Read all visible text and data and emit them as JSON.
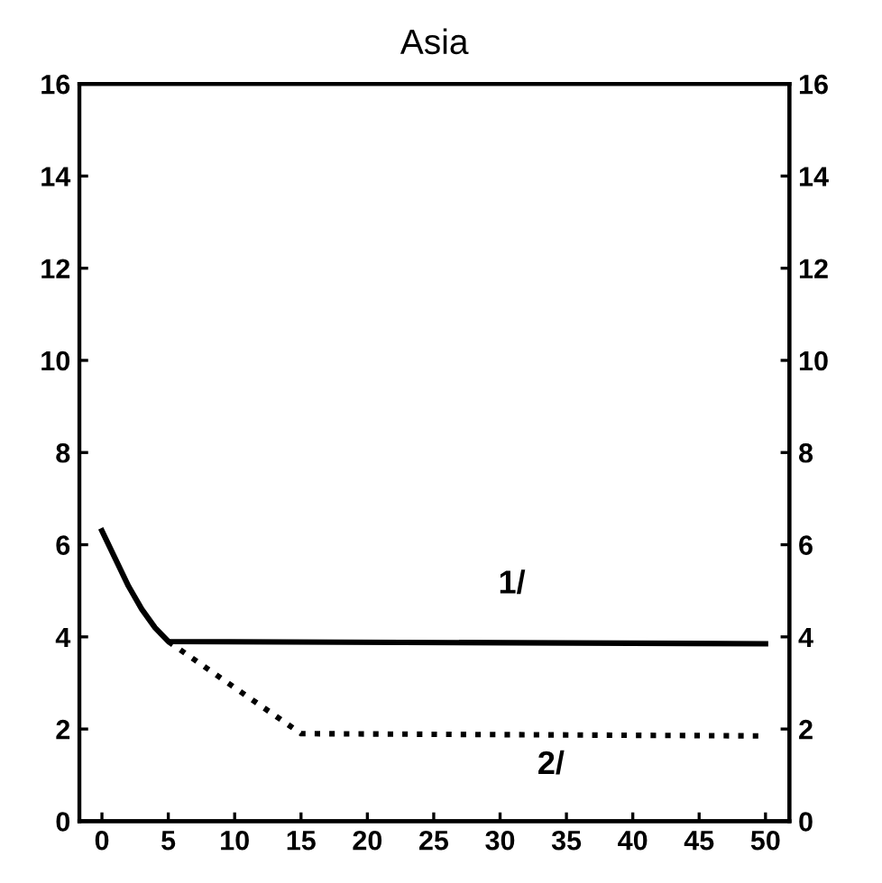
{
  "chart_data": {
    "type": "line",
    "title": "Asia",
    "series": [
      {
        "color": "#000000",
        "line_style": "solid",
        "x": [
          0,
          1,
          2,
          3,
          4,
          5,
          50
        ],
        "values": [
          6.3,
          5.7,
          5.1,
          4.6,
          4.2,
          3.9,
          3.85
        ]
      },
      {
        "color": "#000000",
        "line_style": "dotted",
        "x": [
          5,
          15,
          50
        ],
        "values": [
          3.9,
          1.9,
          1.85
        ]
      }
    ],
    "annotations": [
      "1/",
      "2/"
    ],
    "xlim": [
      -1.7,
      51.8
    ],
    "xticks": [
      0,
      5,
      10,
      15,
      20,
      25,
      30,
      35,
      40,
      45,
      50
    ],
    "ylim": [
      0,
      16
    ],
    "yticks": [
      0,
      2,
      4,
      6,
      8,
      10,
      12,
      14,
      16
    ],
    "y2lim": [
      0,
      16
    ],
    "y2ticks": [
      0,
      2,
      4,
      6,
      8,
      10,
      12,
      14,
      16
    ],
    "grid": false,
    "legend": false
  }
}
